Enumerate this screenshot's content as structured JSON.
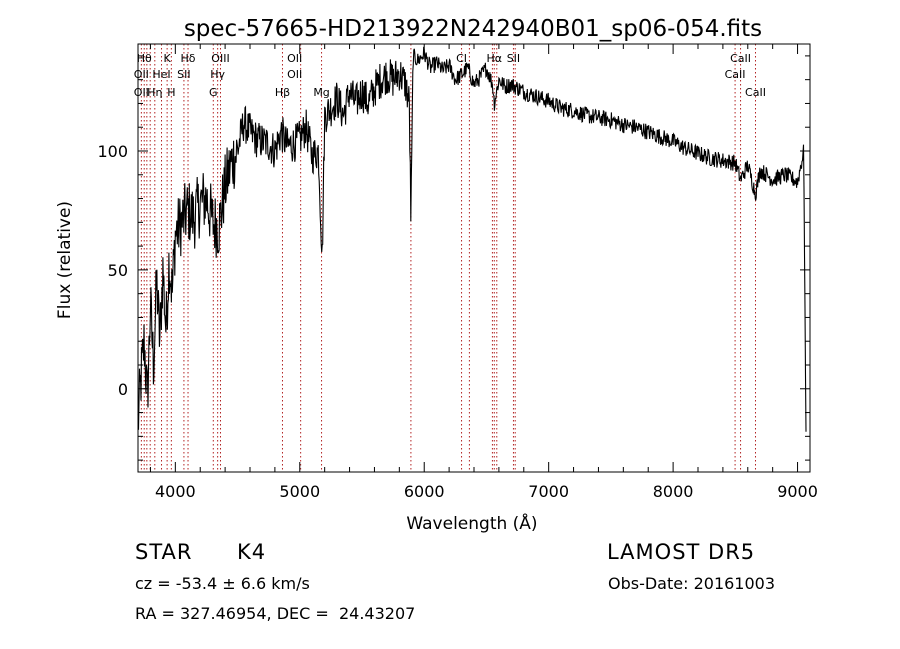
{
  "chart_data": {
    "type": "line",
    "title": "spec-57665-HD213922N242940B01_sp06-054.fits",
    "xlabel": "Wavelength (Å)",
    "ylabel": "Flux (relative)",
    "xlim": [
      3700,
      9100
    ],
    "ylim": [
      -35,
      145
    ],
    "x_ticks": [
      4000,
      5000,
      6000,
      7000,
      8000,
      9000
    ],
    "y_ticks": [
      0,
      50,
      100
    ],
    "grid": false,
    "series": [
      {
        "x": [
          3700,
          3725,
          3750,
          3775,
          3800,
          3825,
          3850,
          3875,
          3900,
          3925,
          3950,
          3975,
          4000,
          4050,
          4100,
          4150,
          4200,
          4250,
          4300,
          4350,
          4400,
          4450,
          4500,
          4550,
          4600,
          4650,
          4700,
          4750,
          4800,
          4850,
          4900,
          4950,
          5000,
          5050,
          5100,
          5150,
          5180,
          5200,
          5250,
          5300,
          5350,
          5400,
          5450,
          5500,
          5550,
          5600,
          5650,
          5700,
          5750,
          5800,
          5850,
          5880,
          5893,
          5910,
          5950,
          6000,
          6050,
          6100,
          6150,
          6200,
          6250,
          6300,
          6350,
          6400,
          6450,
          6500,
          6550,
          6563,
          6600,
          6650,
          6700,
          6800,
          6900,
          7000,
          7100,
          7200,
          7300,
          7400,
          7500,
          7600,
          7700,
          7800,
          7900,
          8000,
          8100,
          8200,
          8300,
          8400,
          8500,
          8542,
          8600,
          8662,
          8700,
          8800,
          8900,
          9000,
          9050,
          9070
        ],
        "y": [
          -15,
          5,
          20,
          -5,
          35,
          10,
          45,
          20,
          50,
          25,
          55,
          40,
          65,
          70,
          75,
          72,
          78,
          80,
          70,
          68,
          85,
          95,
          100,
          112,
          108,
          105,
          104,
          103,
          100,
          108,
          102,
          103,
          105,
          110,
          98,
          100,
          55,
          115,
          118,
          122,
          115,
          125,
          120,
          125,
          120,
          126,
          130,
          132,
          130,
          133,
          128,
          120,
          70,
          140,
          138,
          141,
          135,
          137,
          134,
          136,
          130,
          132,
          135,
          128,
          131,
          135,
          128,
          120,
          130,
          127,
          128,
          125,
          123,
          121,
          118,
          117,
          115,
          114,
          113,
          111,
          110,
          108,
          106,
          104,
          101,
          99,
          97,
          96,
          95,
          88,
          94,
          82,
          92,
          88,
          90,
          87,
          100,
          -35
        ]
      }
    ],
    "annotations": [
      {
        "text": "Hθ",
        "x": 3750,
        "row": 1
      },
      {
        "text": "K",
        "x": 3934,
        "row": 1
      },
      {
        "text": "Hδ",
        "x": 4102,
        "row": 1
      },
      {
        "text": "OIII",
        "x": 4363,
        "row": 1
      },
      {
        "text": "OII",
        "x": 4959,
        "row": 1
      },
      {
        "text": "CI",
        "x": 6300,
        "row": 1
      },
      {
        "text": "Hα",
        "x": 6563,
        "row": 1
      },
      {
        "text": "SII",
        "x": 6717,
        "row": 1
      },
      {
        "text": "CaII",
        "x": 8542,
        "row": 1
      },
      {
        "text": "OII",
        "x": 3727,
        "row": 2
      },
      {
        "text": "HeI",
        "x": 3889,
        "row": 2
      },
      {
        "text": "SII",
        "x": 4069,
        "row": 2
      },
      {
        "text": "Hγ",
        "x": 4340,
        "row": 2
      },
      {
        "text": "OII",
        "x": 4959,
        "row": 2
      },
      {
        "text": "CaII",
        "x": 8498,
        "row": 2
      },
      {
        "text": "OII",
        "x": 3727,
        "row": 3
      },
      {
        "text": "Hη",
        "x": 3835,
        "row": 3
      },
      {
        "text": "H",
        "x": 3968,
        "row": 3
      },
      {
        "text": "G",
        "x": 4305,
        "row": 3
      },
      {
        "text": "Hβ",
        "x": 4861,
        "row": 3
      },
      {
        "text": "Mg",
        "x": 5175,
        "row": 3
      },
      {
        "text": "CaII",
        "x": 8662,
        "row": 3
      }
    ],
    "line_markers": [
      3727,
      3750,
      3771,
      3798,
      3835,
      3889,
      3934,
      3968,
      4069,
      4102,
      4305,
      4340,
      4363,
      4861,
      5007,
      5175,
      5893,
      6300,
      6363,
      6548,
      6563,
      6583,
      6717,
      6731,
      8498,
      8542,
      8662
    ],
    "colors": {
      "spectrum": "#000000",
      "markers": "#b22222"
    }
  },
  "info": {
    "object_class": "STAR",
    "subclass": "K4",
    "survey": "LAMOST DR5",
    "redshift": "cz = -53.4 ± 6.6 km/s",
    "obs_date": "Obs-Date: 20161003",
    "coords": "RA = 327.46954, DEC =  24.43207"
  }
}
